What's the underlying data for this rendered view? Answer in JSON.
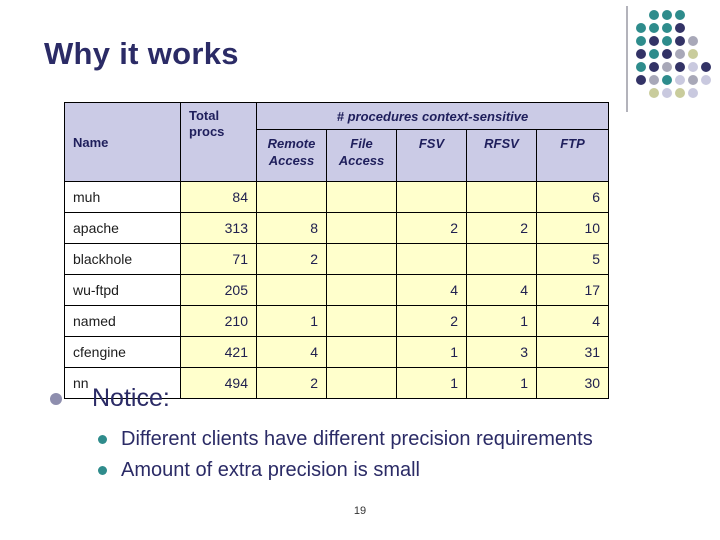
{
  "slide": {
    "title": "Why it works",
    "page_number": "19"
  },
  "table": {
    "header": {
      "name_label": "Name",
      "total_label": "Total procs",
      "group_label": "# procedures context-sensitive",
      "columns": [
        "Remote Access",
        "File Access",
        "FSV",
        "RFSV",
        "FTP"
      ]
    },
    "rows": [
      {
        "name": "muh",
        "total": "84",
        "values": [
          "",
          "",
          "",
          "",
          "6"
        ]
      },
      {
        "name": "apache",
        "total": "313",
        "values": [
          "8",
          "",
          "2",
          "2",
          "10"
        ]
      },
      {
        "name": "blackhole",
        "total": "71",
        "values": [
          "2",
          "",
          "",
          "",
          "5"
        ]
      },
      {
        "name": "wu-ftpd",
        "total": "205",
        "values": [
          "",
          "",
          "4",
          "4",
          "17"
        ]
      },
      {
        "name": "named",
        "total": "210",
        "values": [
          "1",
          "",
          "2",
          "1",
          "4"
        ]
      },
      {
        "name": "cfengine",
        "total": "421",
        "values": [
          "4",
          "",
          "1",
          "3",
          "31"
        ]
      },
      {
        "name": "nn",
        "total": "494",
        "values": [
          "2",
          "",
          "1",
          "1",
          "30"
        ]
      }
    ]
  },
  "bullets": {
    "main": "Notice:",
    "sub": [
      "Different clients have different precision requirements",
      "Amount of extra precision is small"
    ]
  },
  "colors": {
    "title": "#2B2B66",
    "header_bg": "#CBCBE6",
    "data_bg": "#FFFFCC",
    "table_border": "#000000",
    "dot_teal": "#2E8C8C",
    "dot_dark": "#333366",
    "dot_gray": "#A8A8B8",
    "dot_green": "#C9CC9C",
    "dot_lavender": "#C9C9DF"
  },
  "decor": {
    "grid": [
      [
        "",
        "teal",
        "teal",
        "teal",
        "",
        ""
      ],
      [
        "teal",
        "teal",
        "teal",
        "dark",
        "",
        ""
      ],
      [
        "teal",
        "dark",
        "teal",
        "dark",
        "gray",
        ""
      ],
      [
        "dark",
        "teal",
        "dark",
        "gray",
        "green",
        ""
      ],
      [
        "teal",
        "dark",
        "gray",
        "dark",
        "lavender",
        "dark"
      ],
      [
        "dark",
        "gray",
        "teal",
        "lavender",
        "gray",
        "lavender"
      ],
      [
        "",
        "green",
        "lavender",
        "green",
        "lavender",
        ""
      ]
    ]
  }
}
